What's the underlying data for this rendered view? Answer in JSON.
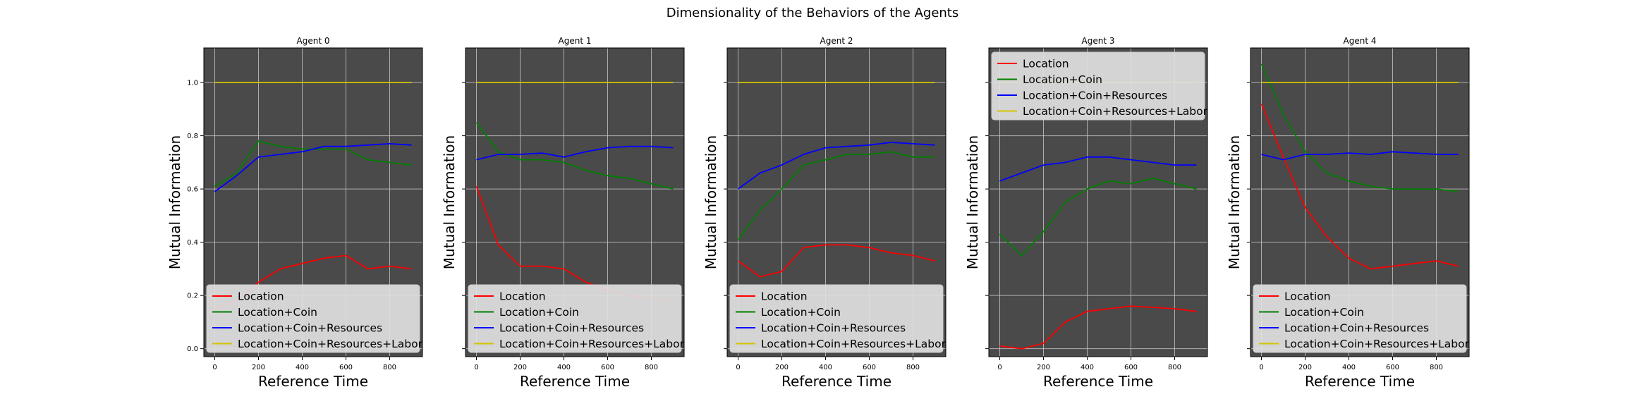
{
  "figure": {
    "suptitle": "Dimensionality of the Behaviors of the Agents"
  },
  "series_colors": {
    "Location": "#ff0000",
    "Location+Coin": "#008000",
    "Location+Coin+Resources": "#0000ff",
    "Location+Coin+Resources+Labor": "#d4c400"
  },
  "style": {
    "plot_background": "#4a4a4a",
    "grid_color": "#c8c8c8",
    "legend_background": "#e0e0e0"
  },
  "chart_data": [
    {
      "type": "line",
      "title": "Agent 0",
      "xlabel": "Reference Time",
      "ylabel": "Mutual Information",
      "xlim": [
        -50,
        950
      ],
      "ylim": [
        -0.03,
        1.13
      ],
      "xticks": [
        0,
        200,
        400,
        600,
        800
      ],
      "yticks": [
        0.0,
        0.2,
        0.4,
        0.6,
        0.8,
        1.0
      ],
      "show_ytick_labels": true,
      "grid": true,
      "legend_position": "lower-center",
      "x": [
        0,
        100,
        200,
        300,
        400,
        500,
        600,
        700,
        800,
        900
      ],
      "series": [
        {
          "name": "Location",
          "values": [
            0.15,
            0.18,
            0.25,
            0.3,
            0.32,
            0.34,
            0.35,
            0.3,
            0.31,
            0.3
          ]
        },
        {
          "name": "Location+Coin",
          "values": [
            0.61,
            0.66,
            0.78,
            0.76,
            0.75,
            0.75,
            0.75,
            0.71,
            0.7,
            0.69
          ]
        },
        {
          "name": "Location+Coin+Resources",
          "values": [
            0.59,
            0.65,
            0.72,
            0.73,
            0.74,
            0.76,
            0.76,
            0.765,
            0.77,
            0.765
          ]
        },
        {
          "name": "Location+Coin+Resources+Labor",
          "values": [
            1.0,
            1.0,
            1.0,
            1.0,
            1.0,
            1.0,
            1.0,
            1.0,
            1.0,
            1.0
          ]
        }
      ]
    },
    {
      "type": "line",
      "title": "Agent 1",
      "xlabel": "Reference Time",
      "ylabel": "Mutual Information",
      "xlim": [
        -50,
        950
      ],
      "ylim": [
        -0.03,
        1.13
      ],
      "xticks": [
        0,
        200,
        400,
        600,
        800
      ],
      "yticks": [
        0.0,
        0.2,
        0.4,
        0.6,
        0.8,
        1.0
      ],
      "show_ytick_labels": false,
      "grid": true,
      "legend_position": "lower-center",
      "x": [
        0,
        100,
        200,
        300,
        400,
        500,
        600,
        700,
        800,
        900
      ],
      "series": [
        {
          "name": "Location",
          "values": [
            0.61,
            0.39,
            0.31,
            0.31,
            0.3,
            0.25,
            0.22,
            0.2,
            0.19,
            0.18
          ]
        },
        {
          "name": "Location+Coin",
          "values": [
            0.85,
            0.74,
            0.71,
            0.71,
            0.7,
            0.67,
            0.65,
            0.64,
            0.62,
            0.6
          ]
        },
        {
          "name": "Location+Coin+Resources",
          "values": [
            0.71,
            0.73,
            0.73,
            0.735,
            0.72,
            0.74,
            0.755,
            0.76,
            0.76,
            0.755
          ]
        },
        {
          "name": "Location+Coin+Resources+Labor",
          "values": [
            1.0,
            1.0,
            1.0,
            1.0,
            1.0,
            1.0,
            1.0,
            1.0,
            1.0,
            1.0
          ]
        }
      ]
    },
    {
      "type": "line",
      "title": "Agent 2",
      "xlabel": "Reference Time",
      "ylabel": "Mutual Information",
      "xlim": [
        -50,
        950
      ],
      "ylim": [
        -0.03,
        1.13
      ],
      "xticks": [
        0,
        200,
        400,
        600,
        800
      ],
      "yticks": [
        0.0,
        0.2,
        0.4,
        0.6,
        0.8,
        1.0
      ],
      "show_ytick_labels": false,
      "grid": true,
      "legend_position": "lower-center",
      "x": [
        0,
        100,
        200,
        300,
        400,
        500,
        600,
        700,
        800,
        900
      ],
      "series": [
        {
          "name": "Location",
          "values": [
            0.33,
            0.27,
            0.29,
            0.38,
            0.39,
            0.39,
            0.38,
            0.36,
            0.35,
            0.33
          ]
        },
        {
          "name": "Location+Coin",
          "values": [
            0.41,
            0.52,
            0.6,
            0.69,
            0.71,
            0.73,
            0.73,
            0.74,
            0.72,
            0.72
          ]
        },
        {
          "name": "Location+Coin+Resources",
          "values": [
            0.6,
            0.66,
            0.69,
            0.73,
            0.755,
            0.76,
            0.765,
            0.775,
            0.77,
            0.765
          ]
        },
        {
          "name": "Location+Coin+Resources+Labor",
          "values": [
            1.0,
            1.0,
            1.0,
            1.0,
            1.0,
            1.0,
            1.0,
            1.0,
            1.0,
            1.0
          ]
        }
      ]
    },
    {
      "type": "line",
      "title": "Agent 3",
      "xlabel": "Reference Time",
      "ylabel": "Mutual Information",
      "xlim": [
        -50,
        950
      ],
      "ylim": [
        -0.03,
        1.13
      ],
      "xticks": [
        0,
        200,
        400,
        600,
        800
      ],
      "yticks": [
        0.0,
        0.2,
        0.4,
        0.6,
        0.8,
        1.0
      ],
      "show_ytick_labels": false,
      "grid": true,
      "legend_position": "upper-left",
      "x": [
        0,
        100,
        200,
        300,
        400,
        500,
        600,
        700,
        800,
        900
      ],
      "series": [
        {
          "name": "Location",
          "values": [
            0.01,
            0.0,
            0.02,
            0.1,
            0.14,
            0.15,
            0.16,
            0.155,
            0.15,
            0.14
          ]
        },
        {
          "name": "Location+Coin",
          "values": [
            0.43,
            0.35,
            0.44,
            0.55,
            0.6,
            0.63,
            0.62,
            0.64,
            0.62,
            0.6
          ]
        },
        {
          "name": "Location+Coin+Resources",
          "values": [
            0.63,
            0.66,
            0.69,
            0.7,
            0.72,
            0.72,
            0.71,
            0.7,
            0.69,
            0.69
          ]
        },
        {
          "name": "Location+Coin+Resources+Labor",
          "values": [
            1.0,
            1.0,
            1.0,
            1.0,
            1.0,
            1.0,
            1.0,
            1.0,
            1.0,
            1.0
          ]
        }
      ]
    },
    {
      "type": "line",
      "title": "Agent 4",
      "xlabel": "Reference Time",
      "ylabel": "Mutual Information",
      "xlim": [
        -50,
        950
      ],
      "ylim": [
        -0.03,
        1.13
      ],
      "xticks": [
        0,
        200,
        400,
        600,
        800
      ],
      "yticks": [
        0.0,
        0.2,
        0.4,
        0.6,
        0.8,
        1.0
      ],
      "show_ytick_labels": false,
      "grid": true,
      "legend_position": "lower-center",
      "x": [
        0,
        100,
        200,
        300,
        400,
        500,
        600,
        700,
        800,
        900
      ],
      "series": [
        {
          "name": "Location",
          "values": [
            0.92,
            0.72,
            0.53,
            0.42,
            0.34,
            0.3,
            0.31,
            0.32,
            0.33,
            0.31
          ]
        },
        {
          "name": "Location+Coin",
          "values": [
            1.07,
            0.88,
            0.74,
            0.66,
            0.63,
            0.61,
            0.6,
            0.6,
            0.6,
            0.59
          ]
        },
        {
          "name": "Location+Coin+Resources",
          "values": [
            0.73,
            0.71,
            0.73,
            0.73,
            0.735,
            0.73,
            0.74,
            0.735,
            0.73,
            0.73
          ]
        },
        {
          "name": "Location+Coin+Resources+Labor",
          "values": [
            1.0,
            1.0,
            1.0,
            1.0,
            1.0,
            1.0,
            1.0,
            1.0,
            1.0,
            1.0
          ]
        }
      ]
    }
  ]
}
